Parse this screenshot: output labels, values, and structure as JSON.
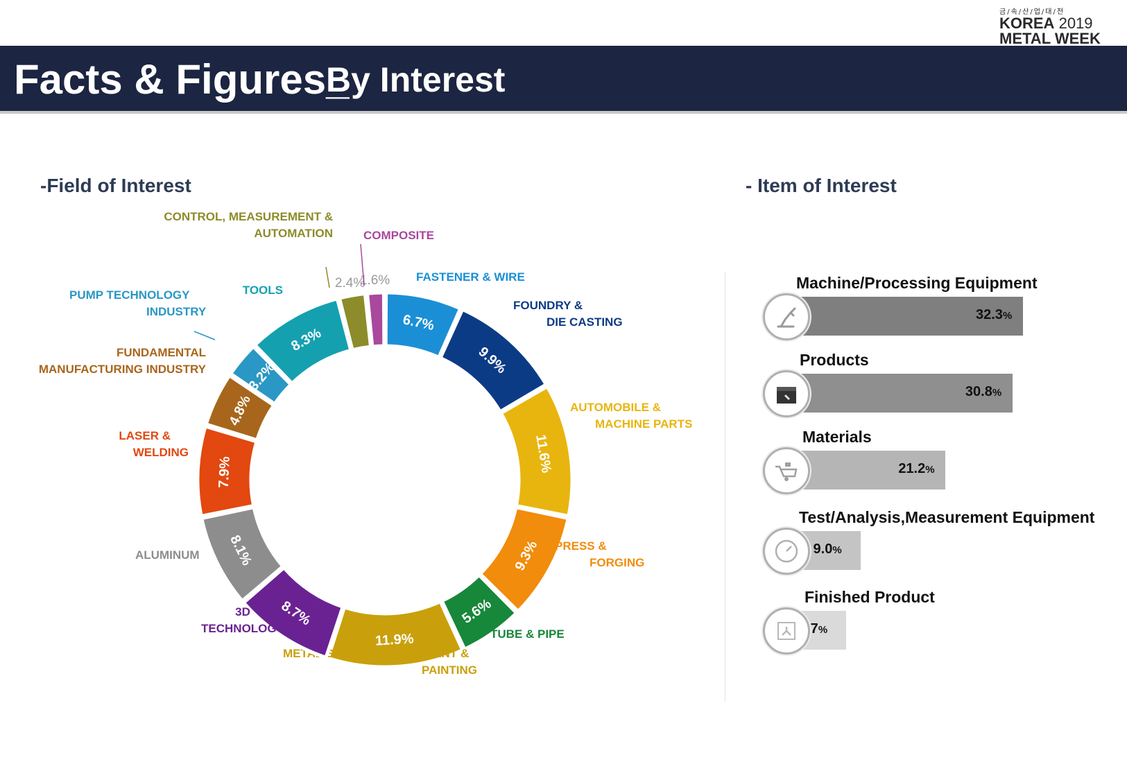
{
  "logo": {
    "korean": "금/속/산/업/대/전",
    "line1_a": "KOREA",
    "line1_b": "2019",
    "line2": "METAL WEEK"
  },
  "banner": {
    "title": "Facts & Figures_",
    "subtitle": "By Interest"
  },
  "sections": {
    "left": "-Field of Interest",
    "right": "- Item of Interest"
  },
  "chart_data": [
    {
      "type": "pie",
      "title": "-Field of Interest",
      "donut": true,
      "slices": [
        {
          "label": "FASTENER & WIRE",
          "value": 6.7,
          "pct_text": "6.7%",
          "color": "#1b8fd6"
        },
        {
          "label": "FOUNDRY & DIE CASTING",
          "value": 9.9,
          "pct_text": "9.9%",
          "color": "#0c3b86"
        },
        {
          "label": "AUTOMOBILE & MACHINE PARTS",
          "value": 11.6,
          "pct_text": "11.6%",
          "color": "#e8b50f"
        },
        {
          "label": "PRESS & FORGING",
          "value": 9.3,
          "pct_text": "9.3%",
          "color": "#f18c0c"
        },
        {
          "label": "TUBE & PIPE",
          "value": 5.6,
          "pct_text": "5.6%",
          "color": "#17873a"
        },
        {
          "label": "METAL SURFACE TREATMENT & PAINTING",
          "value": 11.9,
          "pct_text": "11.9%",
          "color": "#c9a00c"
        },
        {
          "label": "3D TECHNOLOGY",
          "value": 8.7,
          "pct_text": "8.7%",
          "color": "#6a2292"
        },
        {
          "label": "ALUMINUM",
          "value": 8.1,
          "pct_text": "8.1%",
          "color": "#8d8d8d"
        },
        {
          "label": "LASER & WELDING",
          "value": 7.9,
          "pct_text": "7.9%",
          "color": "#e2480f"
        },
        {
          "label": "FUNDAMENTAL MANUFACTURING INDUSTRY",
          "value": 4.8,
          "pct_text": "4.8%",
          "color": "#a8661c"
        },
        {
          "label": "PUMP TECHNOLOGY INDUSTRY",
          "value": 3.2,
          "pct_text": "3.2%",
          "color": "#2a97c4"
        },
        {
          "label": "TOOLS",
          "value": 8.3,
          "pct_text": "8.3%",
          "color": "#15a0b0"
        },
        {
          "label": "CONTROL, MEASUREMENT & AUTOMATION",
          "value": 2.4,
          "pct_text": "2.4%",
          "color": "#8c8c2a"
        },
        {
          "label": "COMPOSITE",
          "value": 1.6,
          "pct_text": "1.6%",
          "color": "#a9489c"
        }
      ]
    },
    {
      "type": "bar",
      "title": "- Item of Interest",
      "orientation": "horizontal",
      "categories": [
        "Machine/Processing Equipment",
        "Products",
        "Materials",
        "Test/Analysis,Measurement Equipment",
        "Finished Product"
      ],
      "values": [
        32.3,
        30.8,
        21.2,
        9.0,
        6.7
      ],
      "value_texts": [
        "32.3",
        "30.8",
        "21.2",
        "9.0",
        "6.7"
      ],
      "unit": "%",
      "colors": [
        "#7f7f7f",
        "#8f8f8f",
        "#b5b5b5",
        "#c4c4c4",
        "#dadada"
      ],
      "icons": [
        "robot-arm-icon",
        "toolbox-icon",
        "wheelbarrow-icon",
        "gauge-icon",
        "hands-box-icon"
      ]
    }
  ]
}
